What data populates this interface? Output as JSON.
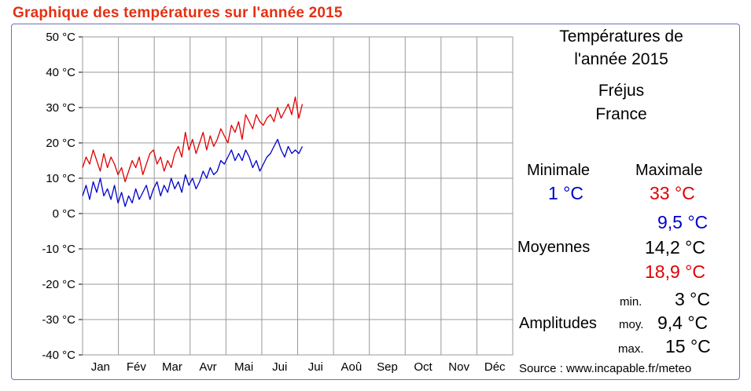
{
  "page_title": "Graphique des températures sur l'année 2015",
  "info": {
    "heading_line1": "Températures de",
    "heading_line2": "l'année 2015",
    "city": "Fréjus",
    "country": "France",
    "minimale_label": "Minimale",
    "minimale_value": "1 °C",
    "maximale_label": "Maximale",
    "maximale_value": "33 °C",
    "moyennes_label": "Moyennes",
    "moyenne_min": "9,5 °C",
    "moyenne_moy": "14,2 °C",
    "moyenne_max": "18,9 °C",
    "amplitudes_label": "Amplitudes",
    "amp_min_label": "min.",
    "amp_min_value": "3 °C",
    "amp_moy_label": "moy.",
    "amp_moy_value": "9,4 °C",
    "amp_max_label": "max.",
    "amp_max_value": "15 °C",
    "source": "Source : www.incapable.fr/meteo"
  },
  "colors": {
    "title": "#e53012",
    "max_series": "#e00000",
    "min_series": "#0000cc",
    "grid": "#999999",
    "frame": "#6a73b5"
  },
  "chart_data": {
    "type": "line",
    "title": "Graphique des températures sur l'année 2015",
    "xlabel": "",
    "ylabel": "",
    "x_unit": "day of year 2015",
    "xlim": [
      1,
      365
    ],
    "ylim": [
      -40,
      50
    ],
    "yticks": [
      50,
      40,
      30,
      20,
      10,
      0,
      -10,
      -20,
      -30,
      -40
    ],
    "ytick_labels": [
      "50 °C",
      "40 °C",
      "30 °C",
      "20 °C",
      "10 °C",
      "0 °C",
      "-10 °C",
      "-20 °C",
      "-30 °C",
      "-40 °C"
    ],
    "months": [
      "Jan",
      "Fév",
      "Mar",
      "Avr",
      "Mai",
      "Jui",
      "Jui",
      "Aoû",
      "Sep",
      "Oct",
      "Nov",
      "Déc"
    ],
    "grid": true,
    "legend": "none",
    "series": [
      {
        "color": "#e00000",
        "x": [
          1,
          4,
          7,
          10,
          13,
          16,
          19,
          22,
          25,
          28,
          31,
          34,
          37,
          40,
          43,
          46,
          49,
          52,
          55,
          58,
          61,
          64,
          67,
          70,
          73,
          76,
          79,
          82,
          85,
          88,
          91,
          94,
          97,
          100,
          103,
          106,
          109,
          112,
          115,
          118,
          121,
          124,
          127,
          130,
          133,
          136,
          139,
          142,
          145,
          148,
          151,
          154,
          157,
          160,
          163,
          166,
          169,
          172,
          175,
          178,
          181,
          184,
          187
        ],
        "y": [
          13,
          16,
          14,
          18,
          15,
          12,
          17,
          13,
          16,
          14,
          11,
          13,
          9,
          12,
          15,
          13,
          16,
          11,
          14,
          17,
          18,
          14,
          16,
          12,
          15,
          13,
          17,
          19,
          16,
          23,
          18,
          21,
          17,
          20,
          23,
          18,
          22,
          19,
          21,
          24,
          22,
          20,
          25,
          23,
          26,
          21,
          28,
          26,
          24,
          28,
          26,
          25,
          27,
          28,
          26,
          30,
          27,
          29,
          31,
          28,
          33,
          27,
          31
        ]
      },
      {
        "color": "#0000cc",
        "x": [
          1,
          4,
          7,
          10,
          13,
          16,
          19,
          22,
          25,
          28,
          31,
          34,
          37,
          40,
          43,
          46,
          49,
          52,
          55,
          58,
          61,
          64,
          67,
          70,
          73,
          76,
          79,
          82,
          85,
          88,
          91,
          94,
          97,
          100,
          103,
          106,
          109,
          112,
          115,
          118,
          121,
          124,
          127,
          130,
          133,
          136,
          139,
          142,
          145,
          148,
          151,
          154,
          157,
          160,
          163,
          166,
          169,
          172,
          175,
          178,
          181,
          184,
          187
        ],
        "y": [
          5,
          8,
          4,
          9,
          6,
          10,
          5,
          7,
          4,
          8,
          3,
          6,
          2,
          5,
          3,
          7,
          4,
          6,
          8,
          4,
          7,
          9,
          5,
          8,
          6,
          10,
          7,
          9,
          6,
          11,
          8,
          10,
          7,
          9,
          12,
          10,
          13,
          11,
          12,
          15,
          14,
          16,
          18,
          15,
          17,
          15,
          18,
          16,
          13,
          15,
          12,
          14,
          16,
          17,
          19,
          21,
          18,
          16,
          19,
          17,
          18,
          17,
          19
        ]
      }
    ]
  }
}
